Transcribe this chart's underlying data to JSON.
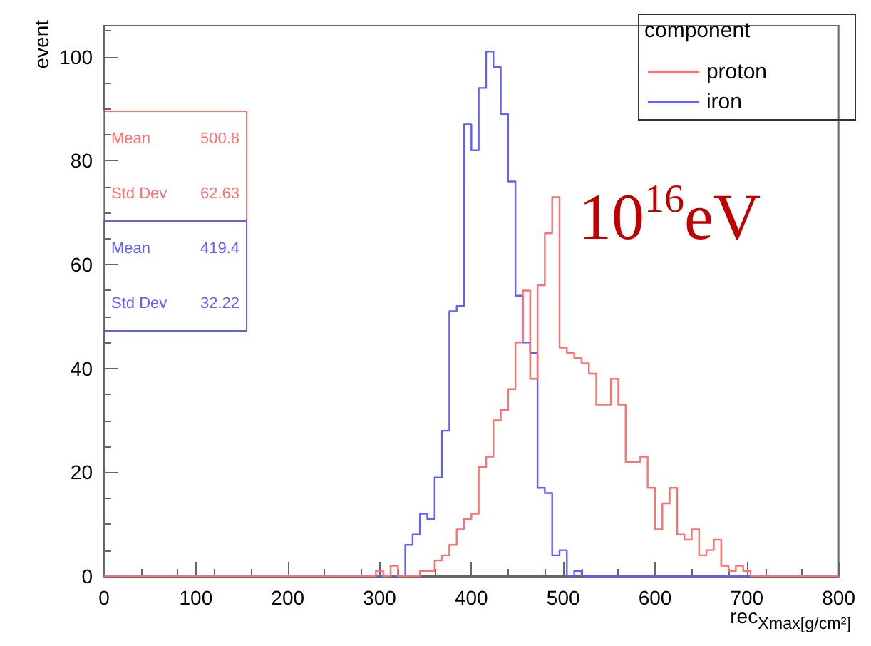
{
  "chart_data": {
    "type": "histogram",
    "xlabel": "rec$_{Xmax[g/cm²]}$",
    "ylabel": "event",
    "legend_title": "component",
    "bins": [
      0,
      8,
      16,
      24,
      32,
      40,
      48,
      56,
      64,
      72,
      80,
      88,
      96,
      104,
      112,
      120,
      128,
      136,
      144,
      152,
      160,
      168,
      176,
      184,
      192,
      200,
      208,
      216,
      224,
      232,
      240,
      248,
      256,
      264,
      272,
      280,
      288,
      296,
      304,
      312,
      320,
      328,
      336,
      344,
      352,
      360,
      368,
      376,
      384,
      392,
      400,
      408,
      416,
      424,
      432,
      440,
      448,
      456,
      464,
      472,
      480,
      488,
      496,
      504,
      512,
      520,
      528,
      536,
      544,
      552,
      560,
      568,
      576,
      584,
      592,
      600,
      608,
      616,
      624,
      632,
      640,
      648,
      656,
      664,
      672,
      680,
      688,
      696,
      704,
      712,
      720,
      728,
      736,
      744,
      752,
      760,
      768,
      776,
      784,
      792,
      800
    ],
    "series": [
      {
        "name": "proton",
        "color": "#ff7070",
        "values": [
          0,
          0,
          0,
          0,
          0,
          0,
          0,
          0,
          0,
          0,
          0,
          0,
          0,
          0,
          0,
          0,
          0,
          0,
          0,
          0,
          0,
          0,
          0,
          0,
          0,
          0,
          0,
          0,
          0,
          0,
          0,
          0,
          0,
          0,
          0,
          0,
          0,
          1,
          0,
          2,
          0,
          0,
          0,
          1,
          1,
          3,
          4,
          6,
          9,
          11,
          12,
          21,
          23,
          30,
          32,
          36,
          45,
          55,
          38,
          56,
          66,
          73,
          44,
          43,
          42,
          41,
          39,
          33,
          33,
          38,
          33,
          22,
          22,
          23,
          17,
          9,
          14,
          17,
          8,
          7,
          9,
          4,
          5,
          7,
          2,
          1,
          2,
          1,
          0,
          0,
          0,
          0,
          0,
          0,
          0,
          0,
          0,
          0,
          0,
          0
        ]
      },
      {
        "name": "iron",
        "color": "#6060ff",
        "values": [
          0,
          0,
          0,
          0,
          0,
          0,
          0,
          0,
          0,
          0,
          0,
          0,
          0,
          0,
          0,
          0,
          0,
          0,
          0,
          0,
          0,
          0,
          0,
          0,
          0,
          0,
          0,
          0,
          0,
          0,
          0,
          0,
          0,
          0,
          0,
          0,
          0,
          0,
          0,
          0,
          0,
          6,
          8,
          12,
          11,
          19,
          28,
          51,
          52,
          87,
          82,
          94,
          101,
          98,
          89,
          76,
          54,
          45,
          43,
          17,
          16,
          4,
          5,
          0,
          1,
          0,
          0,
          0,
          0,
          0,
          0,
          0,
          0,
          0,
          0,
          0,
          0,
          0,
          0,
          0,
          0,
          0,
          0,
          0,
          0,
          0,
          0,
          0,
          0,
          0,
          0,
          0,
          0,
          0,
          0,
          0,
          0,
          0,
          0,
          0
        ]
      }
    ],
    "xlim": [
      0,
      800
    ],
    "ylim": [
      0,
      106
    ],
    "xticks": [
      0,
      100,
      200,
      300,
      400,
      500,
      600,
      700,
      800
    ],
    "yticks": [
      0,
      20,
      40,
      60,
      80,
      100
    ],
    "grid": false,
    "legend": "top right",
    "annotations": [
      "Mean 500.8",
      "Std Dev 62.63",
      "Mean 419.4",
      "Std Dev 32.22",
      "10$^{16}$eV"
    ]
  }
}
